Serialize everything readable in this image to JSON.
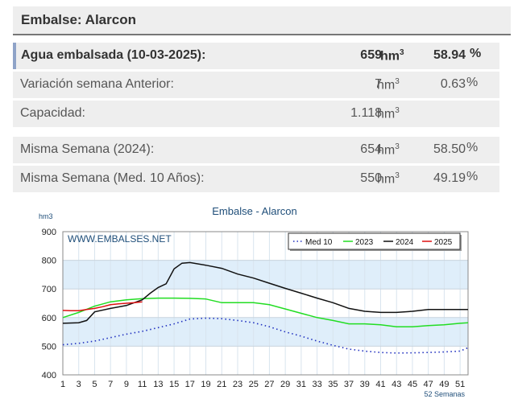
{
  "header": {
    "title": "Embalse: Alarcon"
  },
  "rows": [
    {
      "label": "Agua embalsada (10-03-2025):",
      "value": "659",
      "unit": "hm",
      "unit_sup": "3",
      "pct": "58.94",
      "pct_symbol": "%"
    },
    {
      "label": "Variación semana Anterior:",
      "value": "7",
      "unit": "hm",
      "unit_sup": "3",
      "pct": "0.63",
      "pct_symbol": "%"
    },
    {
      "label": "Capacidad:",
      "value": "1.118",
      "unit": "hm",
      "unit_sup": "3",
      "pct": "",
      "pct_symbol": ""
    },
    {
      "label": "Misma Semana (2024):",
      "value": "654",
      "unit": "hm",
      "unit_sup": "3",
      "pct": "58.50",
      "pct_symbol": "%"
    },
    {
      "label": "Misma Semana (Med. 10 Años):",
      "value": "550",
      "unit": "hm",
      "unit_sup": "3",
      "pct": "49.19",
      "pct_symbol": "%"
    }
  ],
  "chart_data": {
    "type": "line",
    "title": "Embalse - Alarcon",
    "ylabel": "hm3",
    "xlabel": "52 Semanas",
    "watermark": "WWW.EMBALSES.NET",
    "ylim": [
      400,
      900
    ],
    "yticks": [
      400,
      500,
      600,
      700,
      800,
      900
    ],
    "xlim": [
      1,
      52
    ],
    "xticks": [
      1,
      3,
      5,
      7,
      9,
      11,
      13,
      15,
      17,
      19,
      21,
      23,
      25,
      27,
      29,
      31,
      33,
      35,
      37,
      39,
      41,
      43,
      45,
      47,
      49,
      51
    ],
    "legend_position": "top-right",
    "series": [
      {
        "name": "Med 10",
        "color": "#1f2fbf",
        "style": "dotted",
        "x": [
          1,
          3,
          5,
          7,
          9,
          11,
          13,
          15,
          17,
          19,
          21,
          23,
          25,
          27,
          29,
          31,
          33,
          35,
          37,
          39,
          41,
          43,
          45,
          47,
          49,
          51,
          52
        ],
        "y": [
          505,
          510,
          518,
          530,
          542,
          552,
          565,
          578,
          595,
          598,
          596,
          590,
          582,
          568,
          550,
          535,
          518,
          503,
          490,
          483,
          478,
          476,
          477,
          478,
          480,
          483,
          495
        ]
      },
      {
        "name": "2023",
        "color": "#22dd22",
        "style": "solid",
        "x": [
          1,
          3,
          5,
          7,
          9,
          11,
          13,
          15,
          17,
          19,
          21,
          23,
          25,
          27,
          29,
          31,
          33,
          35,
          37,
          39,
          41,
          43,
          45,
          47,
          49,
          51,
          52
        ],
        "y": [
          600,
          618,
          640,
          655,
          662,
          666,
          668,
          668,
          667,
          665,
          652,
          652,
          652,
          645,
          630,
          615,
          600,
          590,
          578,
          578,
          575,
          568,
          568,
          572,
          575,
          580,
          582
        ]
      },
      {
        "name": "2024",
        "color": "#111111",
        "style": "solid",
        "x": [
          1,
          3,
          4,
          5,
          7,
          9,
          11,
          12,
          13,
          14,
          15,
          16,
          17,
          19,
          21,
          23,
          25,
          27,
          29,
          31,
          33,
          35,
          37,
          39,
          41,
          43,
          45,
          47,
          49,
          51,
          52
        ],
        "y": [
          580,
          582,
          590,
          620,
          632,
          642,
          662,
          685,
          705,
          718,
          770,
          790,
          792,
          783,
          772,
          752,
          738,
          720,
          702,
          685,
          668,
          652,
          632,
          622,
          618,
          618,
          622,
          628,
          628,
          628,
          628
        ]
      },
      {
        "name": "2025",
        "color": "#dd1111",
        "style": "solid",
        "x": [
          1,
          2,
          3,
          4,
          5,
          6,
          7,
          8,
          9,
          10,
          11
        ],
        "y": [
          625,
          624,
          624,
          628,
          632,
          638,
          645,
          648,
          650,
          652,
          655
        ]
      }
    ]
  }
}
